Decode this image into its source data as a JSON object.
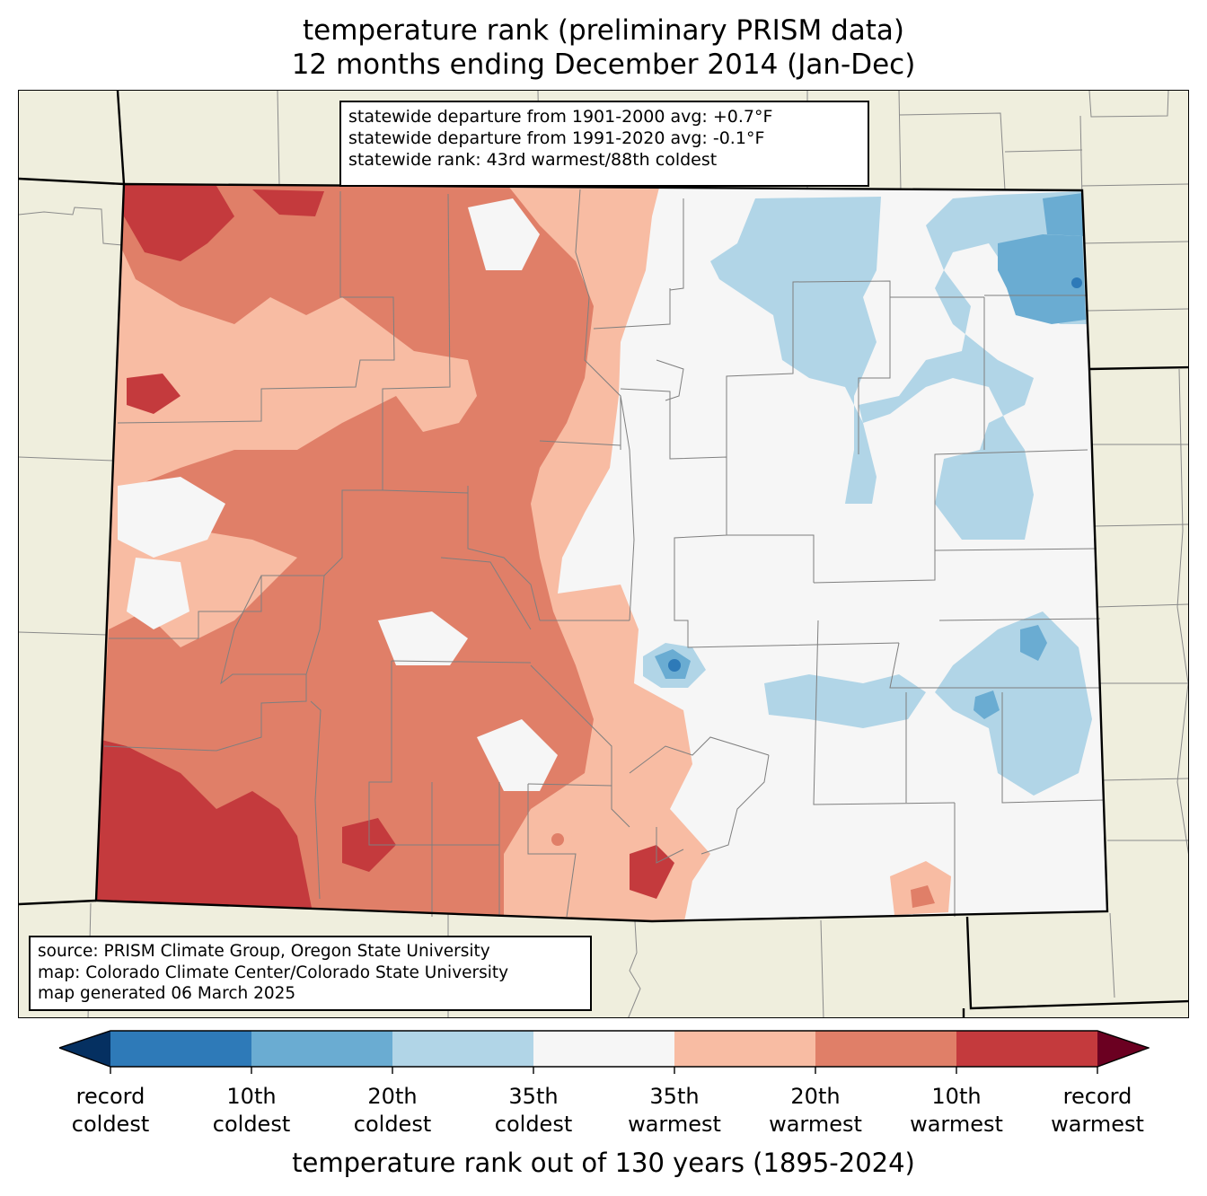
{
  "title": {
    "line1": "temperature rank (preliminary PRISM data)",
    "line2": "12 months ending December 2014 (Jan-Dec)"
  },
  "stats": {
    "line1": "statewide departure from 1901-2000 avg: +0.7°F",
    "line2": "statewide departure from 1991-2020 avg: -0.1°F",
    "line3": "statewide rank: 43rd warmest/88th coldest"
  },
  "source": {
    "line1": "source: PRISM Climate Group, Oregon State University",
    "line2": "map: Colorado Climate Center/Colorado State University",
    "line3": "map generated 06 March 2025"
  },
  "colors": {
    "land_background": "#efeedd",
    "record_coldest": "#053061",
    "coldest_10th": "#2e7ab8",
    "coldest_20th": "#6aacd2",
    "coldest_35th": "#b1d5e7",
    "near_normal": "#f6f6f6",
    "warmest_35th": "#f8bca3",
    "warmest_20th": "#e07f68",
    "warmest_10th": "#c43a3d",
    "record_warmest": "#6b0021"
  },
  "colorbar": {
    "labels": [
      {
        "l1": "record",
        "l2": "coldest"
      },
      {
        "l1": "10th",
        "l2": "coldest"
      },
      {
        "l1": "20th",
        "l2": "coldest"
      },
      {
        "l1": "35th",
        "l2": "coldest"
      },
      {
        "l1": "35th",
        "l2": "warmest"
      },
      {
        "l1": "20th",
        "l2": "warmest"
      },
      {
        "l1": "10th",
        "l2": "warmest"
      },
      {
        "l1": "record",
        "l2": "warmest"
      }
    ],
    "axis_label": "temperature rank out of 130 years (1895-2024)"
  }
}
